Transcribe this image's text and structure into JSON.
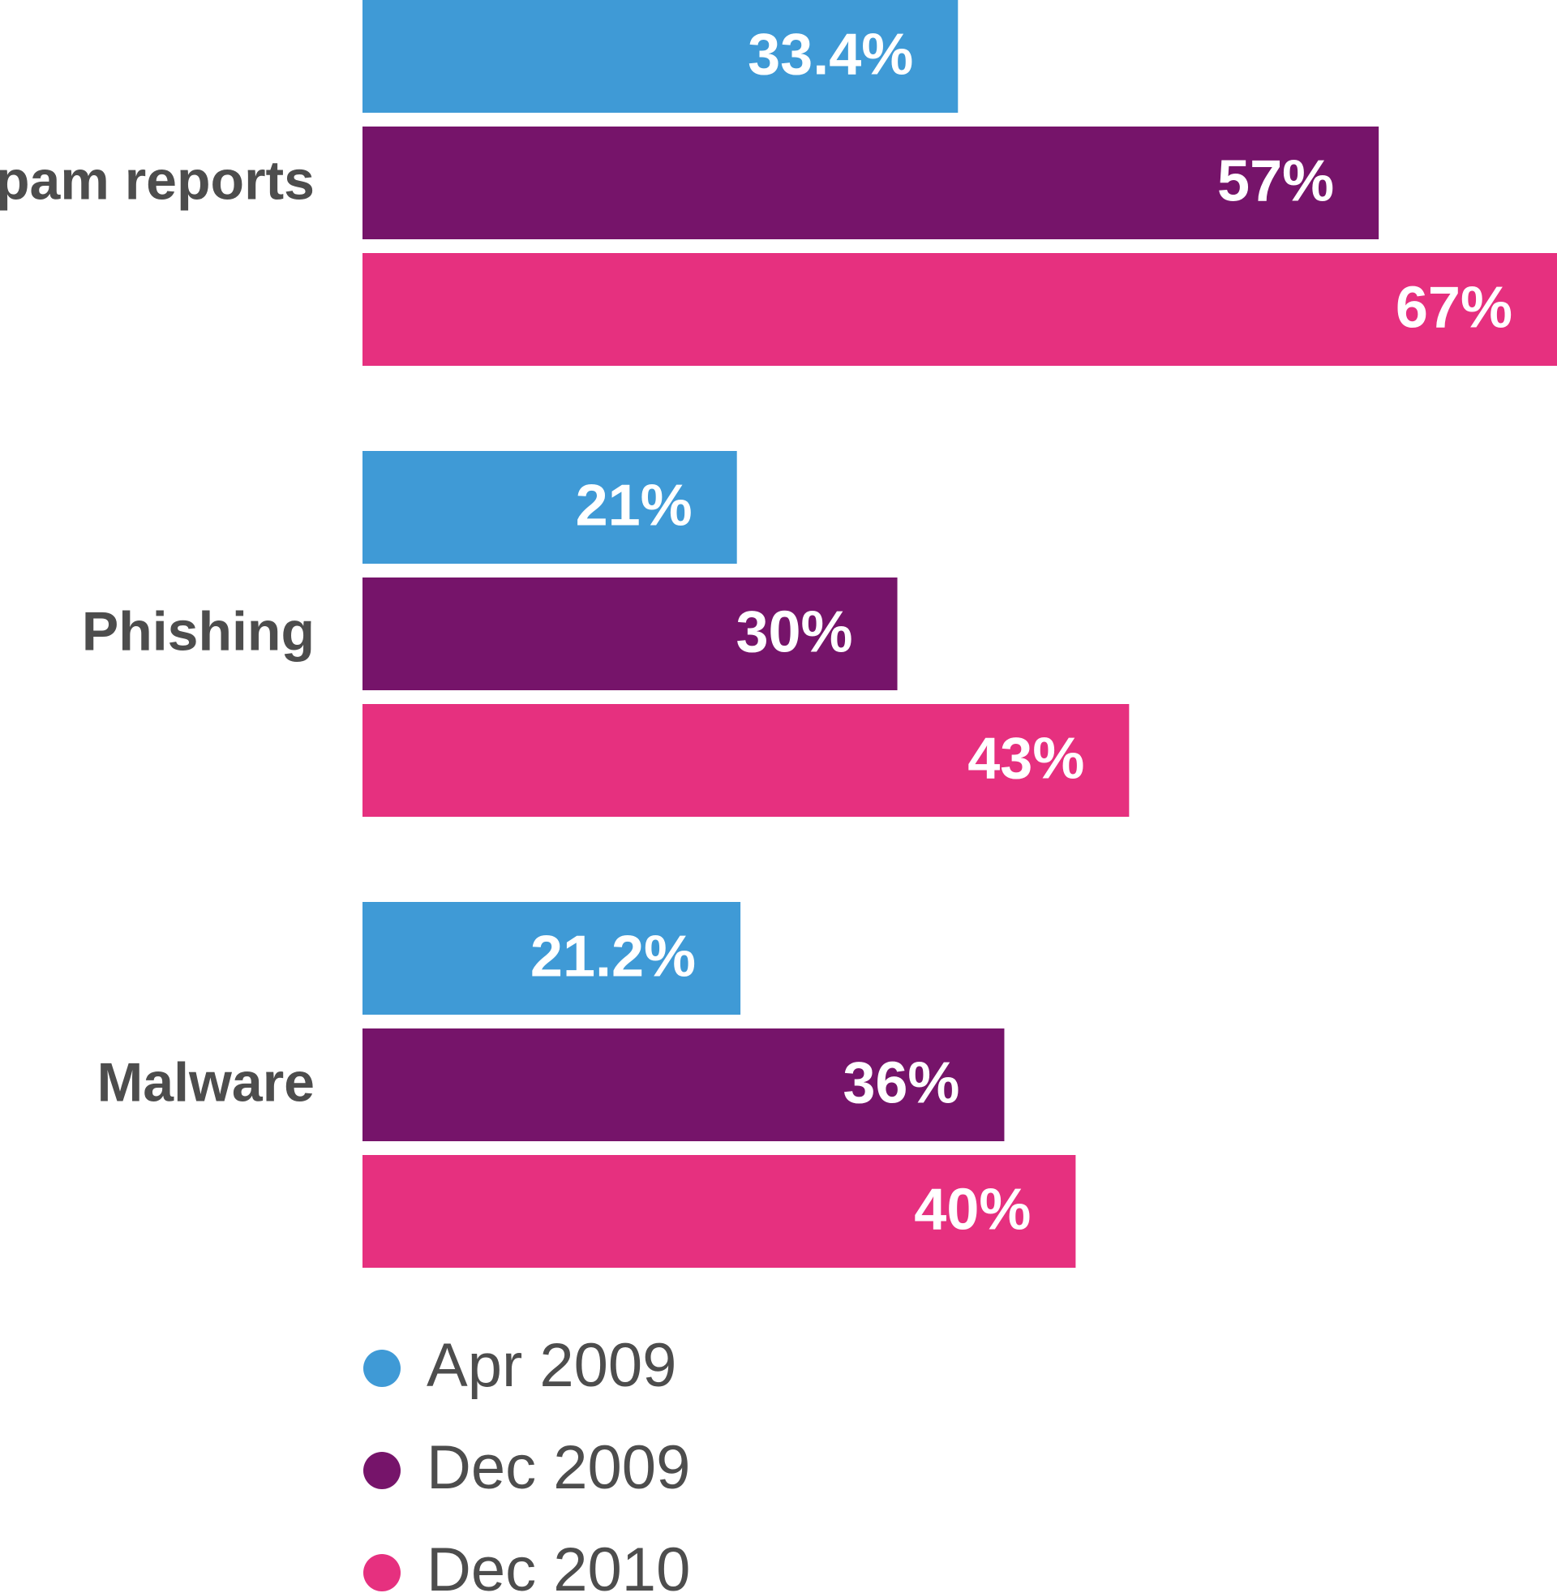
{
  "chart_data": {
    "type": "bar",
    "orientation": "horizontal",
    "categories": [
      "Spam reports",
      "Phishing",
      "Malware"
    ],
    "series": [
      {
        "name": "Apr 2009",
        "color": "#3f9ad6",
        "values": [
          33.4,
          21,
          21.2
        ],
        "value_labels": [
          "33.4%",
          "21%",
          "21.2%"
        ]
      },
      {
        "name": "Dec 2009",
        "color": "#76146a",
        "values": [
          57,
          30,
          36
        ],
        "value_labels": [
          "57%",
          "30%",
          "36%"
        ]
      },
      {
        "name": "Dec 2010",
        "color": "#e6307f",
        "values": [
          67,
          43,
          40
        ],
        "value_labels": [
          "67%",
          "43%",
          "40%"
        ]
      }
    ]
  }
}
